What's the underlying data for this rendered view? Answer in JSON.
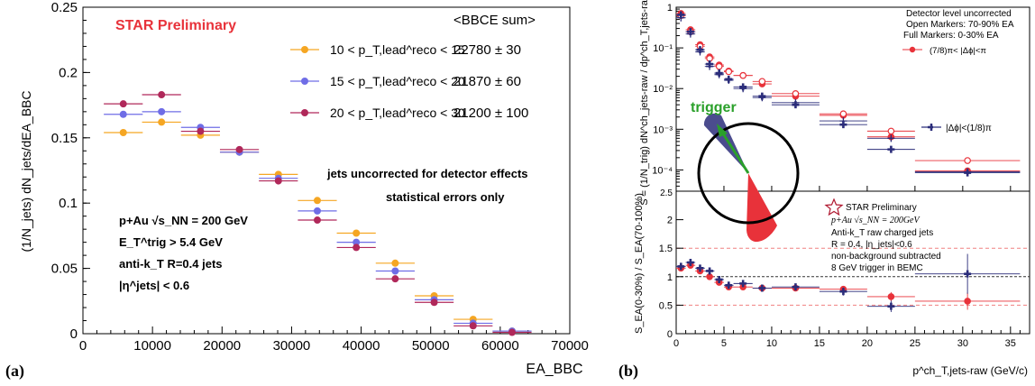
{
  "panel_a": {
    "label": "(a)",
    "star_label": "STAR Preliminary",
    "legend_header": "<BBCE sum>",
    "note_1": "jets uncorrected for detector effects",
    "note_2": "statistical errors only",
    "info_collision": "p+Au √s_NN = 200 GeV",
    "info_trigger": "E_T^trig > 5.4 GeV",
    "info_jets": "anti-k_T R=0.4 jets",
    "info_eta": "|η^jets| < 0.6",
    "ylabel": "(1/N_jets) dN_jets/dEA_BBC",
    "xlabel": "EA_BBC"
  },
  "panel_b": {
    "label": "(b)",
    "top_note_1": "Detector level uncorrected",
    "top_note_2": "Open Markers: 70-90% EA",
    "top_note_3": "Full Markers:  0-30% EA",
    "legend_red": "(7/8)π< |Δϕ|<π",
    "legend_blue": "|Δϕ|<(1/8)π",
    "trigger_label": "trigger",
    "bottom_star": "STAR Preliminary",
    "bottom_collision": "p+Au √s_NN = 200GeV",
    "bottom_jets": "Anti-k_T raw charged jets",
    "bottom_R": "R = 0.4, |η_jets|<0.6",
    "bottom_nonbg": "non-background subtracted",
    "bottom_trig": "8 GeV trigger in BEMC",
    "ylabel_top": "S = (1/N_trig) dN^ch_jets-raw / dp^ch_T,jets-raw",
    "ylabel_bottom": "S_EA(0-30%) / S_EA(70-100%)",
    "xlabel": "p^ch_T,jets-raw (GeV/c)",
    "colors": {
      "red": "#e8323a",
      "blue": "#2b2d7a",
      "green": "#2aa02a"
    }
  },
  "chart_data": [
    {
      "type": "scatter",
      "title": "STAR Preliminary",
      "xlabel": "EA_BBC",
      "ylabel": "(1/N_jets) dN_jets/dEA_BBC",
      "xlim": [
        0,
        70000
      ],
      "ylim": [
        0,
        0.25
      ],
      "xticks": [
        0,
        10000,
        20000,
        30000,
        40000,
        50000,
        60000,
        70000
      ],
      "xtick_labels": [
        "0",
        "10000",
        "20000",
        "30000",
        "40000",
        "50000",
        "60000",
        "70000"
      ],
      "yticks": [
        0,
        0.05,
        0.1,
        0.15,
        0.2,
        0.25
      ],
      "ytick_labels": [
        "0",
        "0.05",
        "0.1",
        "0.15",
        "0.2",
        "0.25"
      ],
      "x": [
        5800,
        11300,
        16900,
        22500,
        28100,
        33700,
        39300,
        44900,
        50500,
        56100,
        61700
      ],
      "xerr": 2800,
      "series": [
        {
          "name": "10 < p_T,lead^reco < 15",
          "bbce": "22780 ± 30",
          "color": "#f5a623",
          "values": [
            0.154,
            0.162,
            0.152,
            0.139,
            0.122,
            0.102,
            0.077,
            0.054,
            0.029,
            0.011,
            0.002
          ]
        },
        {
          "name": "15 < p_T,lead^reco < 20",
          "bbce": "21870 ± 60",
          "color": "#6f6de6",
          "values": [
            0.168,
            0.17,
            0.158,
            0.139,
            0.119,
            0.094,
            0.07,
            0.048,
            0.026,
            0.008,
            0.002
          ]
        },
        {
          "name": "20 < p_T,lead^reco < 30",
          "bbce": "21200 ± 100",
          "color": "#b0285a",
          "values": [
            0.176,
            0.183,
            0.155,
            0.141,
            0.117,
            0.087,
            0.066,
            0.042,
            0.024,
            0.006,
            0.001
          ]
        }
      ]
    },
    {
      "type": "scatter",
      "log_y": true,
      "ylabel": "S = (1/N_trig) dN^ch_jets-raw / dp^ch_T,jets-raw",
      "xlim": [
        0,
        37
      ],
      "ylim": [
        3e-05,
        1
      ],
      "ytick_labels": [
        "10⁻⁴",
        "10⁻³",
        "10⁻²",
        "10⁻¹",
        "1"
      ],
      "yticks": [
        0.0001,
        0.001,
        0.01,
        0.1,
        1
      ],
      "x": [
        0.5,
        1.5,
        2.5,
        3.5,
        4.5,
        5.5,
        7,
        9,
        12.5,
        17.5,
        22.5,
        30.5
      ],
      "xerr": [
        0.5,
        0.5,
        0.5,
        0.5,
        0.5,
        0.5,
        1,
        1,
        2.5,
        2.5,
        2.5,
        5.5
      ],
      "series": [
        {
          "name": "(7/8)π< |Δϕ|<π",
          "group": "0-30% EA",
          "color": "#e8323a",
          "marker": "circle-filled",
          "values": [
            0.7,
            0.28,
            0.12,
            0.06,
            0.038,
            0.027,
            0.021,
            0.013,
            0.0065,
            0.0022,
            0.00065,
            9.5e-05
          ]
        },
        {
          "name": "(7/8)π< |Δϕ|<π",
          "group": "70-90% EA",
          "color": "#e8323a",
          "marker": "circle-open",
          "values": [
            0.62,
            0.25,
            0.11,
            0.055,
            0.035,
            0.026,
            0.021,
            0.015,
            0.0075,
            0.0024,
            0.0009,
            0.00017
          ]
        },
        {
          "name": "|Δϕ|<(1/8)π",
          "group": "0-30% EA",
          "color": "#2b2d7a",
          "marker": "cross-filled",
          "values": [
            0.65,
            0.25,
            0.09,
            0.04,
            0.024,
            0.017,
            0.011,
            0.0065,
            0.004,
            0.0013,
            0.00032,
            8.5e-05
          ]
        },
        {
          "name": "|Δϕ|<(1/8)π",
          "group": "70-90% EA",
          "color": "#2b2d7a",
          "marker": "cross-open",
          "values": [
            0.55,
            0.22,
            0.08,
            0.035,
            0.022,
            0.016,
            0.01,
            0.006,
            0.0045,
            0.0016,
            0.0006,
            9e-05
          ]
        }
      ]
    },
    {
      "type": "scatter",
      "xlabel": "p^ch_T,jets-raw (GeV/c)",
      "ylabel": "S_EA(0-30%) / S_EA(70-100%)",
      "xlim": [
        0,
        37
      ],
      "ylim": [
        0,
        2.5
      ],
      "xticks": [
        0,
        5,
        10,
        15,
        20,
        25,
        30,
        35
      ],
      "xtick_labels": [
        "0",
        "5",
        "10",
        "15",
        "20",
        "25",
        "30",
        "35"
      ],
      "yticks": [
        0,
        0.5,
        1,
        1.5,
        2
      ],
      "ytick_labels": [
        "0",
        "0.5",
        "1",
        "1.5",
        "2"
      ],
      "top_tick_label": "2.5",
      "reference_lines": [
        0.5,
        1,
        1.5
      ],
      "x": [
        0.5,
        1.5,
        2.5,
        3.5,
        4.5,
        5.5,
        7,
        9,
        12.5,
        17.5,
        22.5,
        30.5
      ],
      "xerr": [
        0.5,
        0.5,
        0.5,
        0.5,
        0.5,
        0.5,
        1,
        1,
        2.5,
        2.5,
        2.5,
        5.5
      ],
      "series": [
        {
          "name": "(7/8)π< |Δϕ|<π",
          "color": "#e8323a",
          "marker": "circle",
          "values": [
            1.15,
            1.2,
            1.1,
            1.0,
            0.9,
            0.82,
            0.82,
            0.8,
            0.8,
            0.78,
            0.65,
            0.57
          ],
          "yerr": [
            0.03,
            0.03,
            0.03,
            0.03,
            0.03,
            0.03,
            0.03,
            0.03,
            0.04,
            0.05,
            0.08,
            0.15
          ]
        },
        {
          "name": "|Δϕ|<(1/8)π",
          "color": "#2b2d7a",
          "marker": "cross",
          "values": [
            1.18,
            1.25,
            1.15,
            1.1,
            0.95,
            0.85,
            0.88,
            0.8,
            0.82,
            0.74,
            0.48,
            1.05
          ],
          "yerr": [
            0.04,
            0.04,
            0.04,
            0.04,
            0.04,
            0.04,
            0.04,
            0.04,
            0.05,
            0.07,
            0.1,
            0.35
          ]
        }
      ]
    }
  ]
}
